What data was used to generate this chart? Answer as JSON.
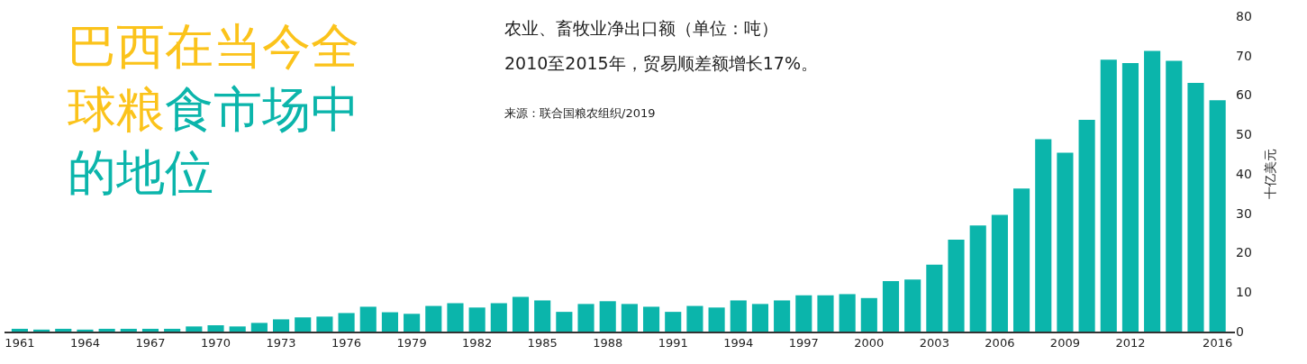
{
  "chart_data": {
    "type": "bar",
    "title": "巴西在当今全球粮食市场中的地位",
    "subtitle": "农业、畜牧业净出口额（单位：吨）",
    "annotations": [
      "2010至2015年，贸易顺差额增长17%。",
      "来源：联合国粮农组织/2019"
    ],
    "ylabel": "十亿美元",
    "color": "#0bb5ab",
    "categories": [
      "1961",
      null,
      null,
      "1964",
      null,
      null,
      "1967",
      null,
      null,
      "1970",
      null,
      null,
      "1973",
      null,
      null,
      "1976",
      null,
      null,
      "1979",
      null,
      null,
      "1982",
      null,
      null,
      "1985",
      null,
      null,
      "1988",
      null,
      null,
      "1991",
      null,
      null,
      "1994",
      null,
      null,
      "1997",
      null,
      null,
      "2000",
      null,
      null,
      "2003",
      null,
      null,
      "2006",
      null,
      null,
      "2009",
      null,
      null,
      "2012",
      null,
      null,
      null,
      "2016"
    ],
    "values": [
      0.7,
      0.5,
      0.7,
      0.5,
      0.7,
      0.7,
      0.7,
      0.7,
      1.3,
      1.6,
      1.3,
      2.2,
      3.1,
      3.6,
      3.8,
      4.7,
      6.3,
      4.9,
      4.5,
      6.5,
      7.2,
      6.1,
      7.2,
      8.8,
      7.9,
      5.0,
      7.0,
      7.7,
      7.0,
      6.3,
      5.0,
      6.5,
      6.1,
      7.9,
      7.0,
      7.9,
      9.2,
      9.2,
      9.5,
      8.5,
      12.8,
      13.2,
      17.0,
      23.3,
      26.9,
      29.6,
      36.3,
      48.8,
      45.4,
      53.7,
      69.0,
      68.1,
      71.2,
      68.7,
      63.1,
      58.7
    ],
    "ylim": [
      0,
      80
    ],
    "yticks": [
      0,
      10,
      20,
      30,
      40,
      50,
      60,
      70,
      80
    ]
  }
}
